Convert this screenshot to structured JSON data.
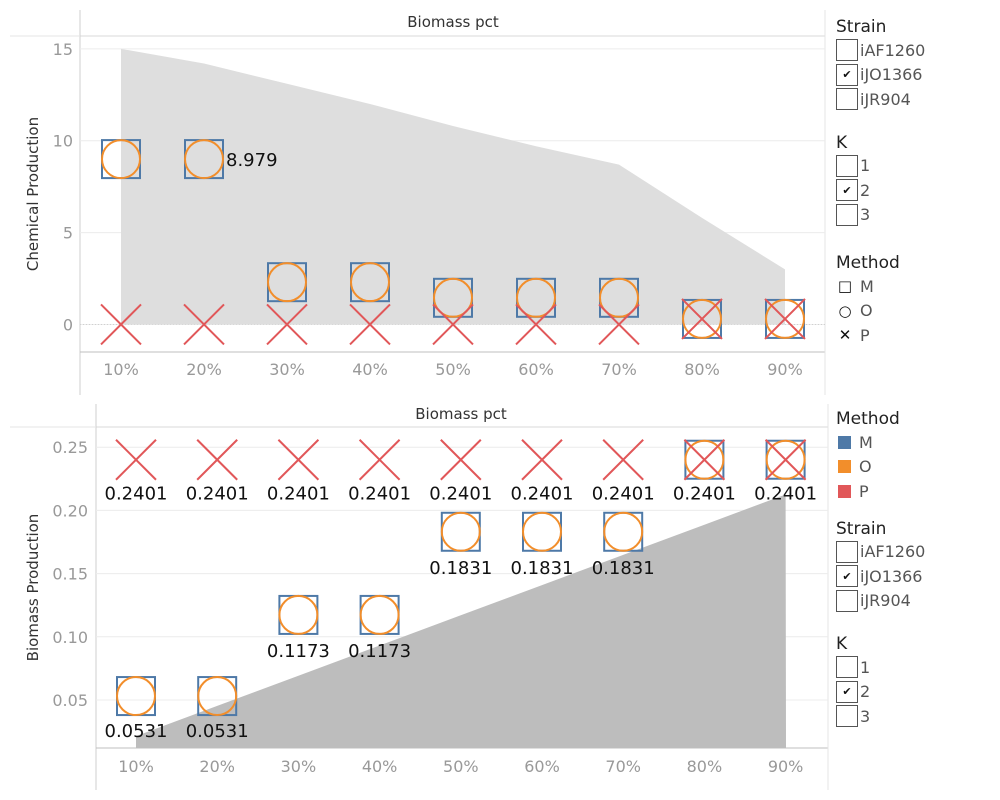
{
  "chart_data": [
    {
      "type": "scatter",
      "title": "Biomass pct",
      "xlabel": "Biomass pct",
      "ylabel": "Chemical Production",
      "categories": [
        "10%",
        "20%",
        "30%",
        "40%",
        "50%",
        "60%",
        "70%",
        "80%",
        "90%"
      ],
      "yticks": [
        "0",
        "5",
        "10",
        "15"
      ],
      "ylim": [
        -1.5,
        15.7
      ],
      "area": [
        15,
        14.2,
        13.1,
        12.0,
        10.8,
        9.7,
        8.7,
        5.8,
        3.0
      ],
      "series": [
        {
          "name": "M",
          "values": [
            9,
            9,
            2.3,
            2.3,
            1.45,
            1.45,
            1.45,
            0.3,
            0.3
          ]
        },
        {
          "name": "O",
          "values": [
            9,
            9,
            2.3,
            2.3,
            1.45,
            1.45,
            1.45,
            0.3,
            0.3
          ]
        },
        {
          "name": "P",
          "values": [
            0,
            0,
            0,
            0,
            0,
            0,
            0,
            0.3,
            0.3
          ]
        }
      ],
      "data_labels": [
        "",
        "8.979",
        "",
        "",
        "",
        "",
        "",
        "",
        ""
      ]
    },
    {
      "type": "scatter",
      "title": "Biomass pct",
      "xlabel": "Biomass pct",
      "ylabel": "Biomass Production",
      "categories": [
        "10%",
        "20%",
        "30%",
        "40%",
        "50%",
        "60%",
        "70%",
        "80%",
        "90%"
      ],
      "yticks": [
        "0.05",
        "0.10",
        "0.15",
        "0.20",
        "0.25"
      ],
      "ylim": [
        0.012,
        0.266
      ],
      "area": [
        0.0214,
        0.0453,
        0.0692,
        0.0931,
        0.117,
        0.1409,
        0.1648,
        0.1887,
        0.2126
      ],
      "series": [
        {
          "name": "M",
          "values": [
            0.0531,
            0.0531,
            0.1173,
            0.1173,
            0.1831,
            0.1831,
            0.1831,
            0.2401,
            0.2401
          ]
        },
        {
          "name": "O",
          "values": [
            0.0531,
            0.0531,
            0.1173,
            0.1173,
            0.1831,
            0.1831,
            0.1831,
            0.2401,
            0.2401
          ]
        },
        {
          "name": "P",
          "values": [
            0.2401,
            0.2401,
            0.2401,
            0.2401,
            0.2401,
            0.2401,
            0.2401,
            0.2401,
            0.2401
          ]
        }
      ],
      "data_labels": [
        [
          "0.2401",
          "0.2401",
          "0.2401",
          "0.2401",
          "0.2401",
          "0.2401",
          "0.2401",
          "0.2401",
          "0.2401"
        ],
        [
          "",
          "",
          "",
          "",
          "0.1831",
          "0.1831",
          "0.1831",
          "",
          ""
        ],
        [
          "",
          "",
          "0.1173",
          "0.1173",
          "",
          "",
          "",
          "",
          ""
        ],
        [
          "0.0531",
          "0.0531",
          "",
          "",
          "",
          "",
          "",
          "",
          ""
        ]
      ]
    }
  ],
  "colors": {
    "M": "#4e79a7",
    "O": "#f28e2b",
    "P": "#e15759",
    "area_top": "#dedede",
    "area_bottom": "#bdbdbd"
  },
  "legends_top": {
    "strain_title": "Strain",
    "strain_items": [
      {
        "label": "iAF1260",
        "checked": false
      },
      {
        "label": "iJO1366",
        "checked": true
      },
      {
        "label": "iJR904",
        "checked": false
      }
    ],
    "k_title": "K",
    "k_items": [
      {
        "label": "1",
        "checked": false
      },
      {
        "label": "2",
        "checked": true
      },
      {
        "label": "3",
        "checked": false
      }
    ],
    "method_title": "Method",
    "method_items": [
      {
        "label": "M",
        "icon": "square-marker-icon"
      },
      {
        "label": "O",
        "icon": "circle-marker-icon"
      },
      {
        "label": "P",
        "icon": "cross-marker-icon"
      }
    ]
  },
  "legends_bottom": {
    "method_title": "Method",
    "method_items": [
      {
        "label": "M"
      },
      {
        "label": "O"
      },
      {
        "label": "P"
      }
    ],
    "strain_title": "Strain",
    "strain_items": [
      {
        "label": "iAF1260",
        "checked": false
      },
      {
        "label": "iJO1366",
        "checked": true
      },
      {
        "label": "iJR904",
        "checked": false
      }
    ],
    "k_title": "K",
    "k_items": [
      {
        "label": "1",
        "checked": false
      },
      {
        "label": "2",
        "checked": true
      },
      {
        "label": "3",
        "checked": false
      }
    ]
  }
}
